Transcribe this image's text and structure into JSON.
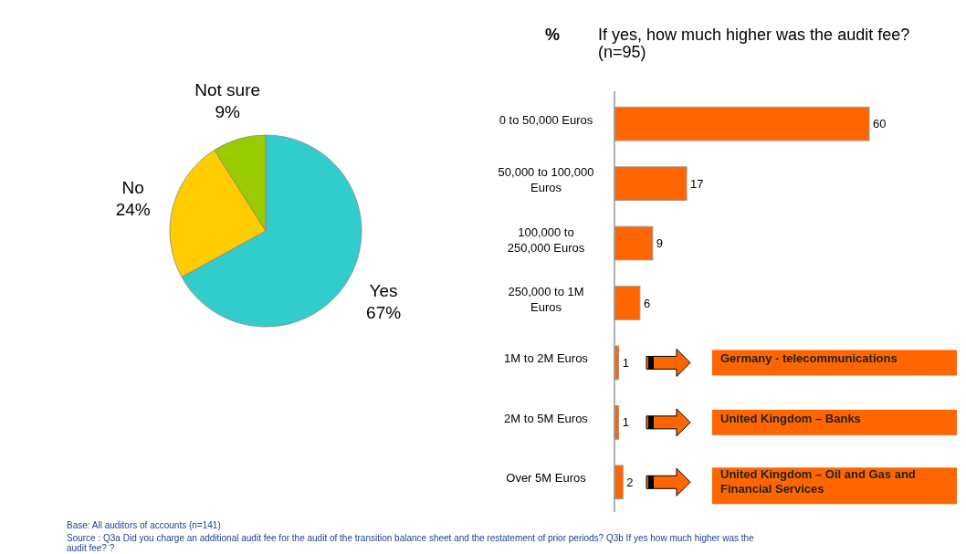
{
  "chart_data": [
    {
      "type": "pie",
      "categories": [
        "Yes",
        "No",
        "Not sure"
      ],
      "values": [
        67,
        24,
        9
      ],
      "colors": [
        "#33cccc",
        "#ffcc00",
        "#99cc00"
      ],
      "value_labels": [
        "67%",
        "24%",
        "9%"
      ],
      "annotations": [
        "Base: All auditors of accounts (n=141)",
        "Source : Q3a Did you charge an additional audit fee for the audit of the  transition balance sheet and the restatement of prior periods? Q3b If yes how much higher was the audit fee? ?"
      ]
    },
    {
      "type": "bar",
      "orientation": "horizontal",
      "title": "If yes, how much higher was the audit fee? (n=95)",
      "ylabel": "%",
      "categories": [
        "0 to 50,000 Euros",
        "50,000 to 100,000 Euros",
        "100,000 to 250,000 Euros",
        "250,000 to 1M Euros",
        "1M to 2M Euros",
        "2M to 5M Euros",
        "Over 5M Euros"
      ],
      "values": [
        60,
        17,
        9,
        6,
        1,
        1,
        2
      ],
      "color": "#ff6600",
      "data_labels": true,
      "annotations": [
        "Germany - telecommunications",
        "United Kingdom – Banks",
        "United Kingdom – Oil and Gas and Financial Services"
      ]
    }
  ]
}
